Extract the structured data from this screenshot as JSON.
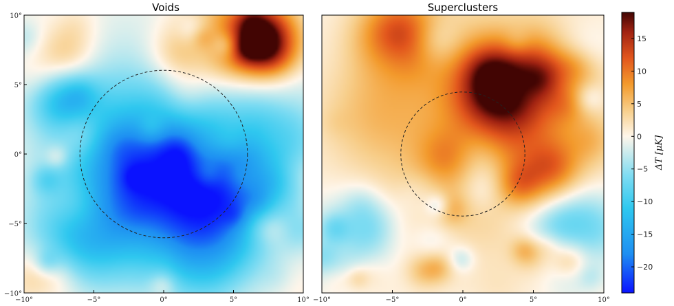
{
  "chart_data": [
    {
      "type": "heatmap",
      "title": "Voids",
      "xlim": [
        -10,
        10
      ],
      "ylim": [
        -10,
        10
      ],
      "x_ticks": [
        "−10°",
        "−5°",
        "0°",
        "5°",
        "10°"
      ],
      "y_ticks": [
        "10°",
        "5°",
        "0°",
        "−5°",
        "−10°"
      ],
      "circle": {
        "center": [
          0,
          0
        ],
        "radius": 6
      },
      "blobs": [
        {
          "x": -1,
          "y": -2,
          "sigma": 3.5,
          "value": -16
        },
        {
          "x": 0,
          "y": 0,
          "sigma": 5.5,
          "value": -8
        },
        {
          "x": 5,
          "y": -3,
          "sigma": 2.5,
          "value": -10
        },
        {
          "x": -6,
          "y": -6,
          "sigma": 2.5,
          "value": -9
        },
        {
          "x": 3,
          "y": -7,
          "sigma": 2.5,
          "value": -10
        },
        {
          "x": -7,
          "y": 4,
          "sigma": 2,
          "value": -6
        },
        {
          "x": 8,
          "y": 1,
          "sigma": 2.5,
          "value": -7
        },
        {
          "x": 7,
          "y": 8.5,
          "sigma": 1.8,
          "value": 16
        },
        {
          "x": 4,
          "y": 8,
          "sigma": 2.2,
          "value": 10
        },
        {
          "x": 1,
          "y": 7,
          "sigma": 1.5,
          "value": 5
        },
        {
          "x": -7,
          "y": 7,
          "sigma": 1.5,
          "value": 6
        },
        {
          "x": -6,
          "y": 1.5,
          "sigma": 1.2,
          "value": 4
        },
        {
          "x": -8.5,
          "y": -9,
          "sigma": 1.5,
          "value": 7
        },
        {
          "x": 1.5,
          "y": 4,
          "sigma": 1.2,
          "value": 3
        }
      ]
    },
    {
      "type": "heatmap",
      "title": "Superclusters",
      "xlim": [
        -10,
        10
      ],
      "ylim": [
        -10,
        10
      ],
      "x_ticks": [
        "−10°",
        "−5°",
        "0°",
        "5°",
        "10°"
      ],
      "y_ticks": [],
      "circle": {
        "center": [
          0,
          0
        ],
        "radius": 4.4
      },
      "blobs": [
        {
          "x": 2.8,
          "y": 4.8,
          "sigma": 2.2,
          "value": 16
        },
        {
          "x": -4.5,
          "y": 8.5,
          "sigma": 2,
          "value": 12
        },
        {
          "x": 1,
          "y": 2,
          "sigma": 6,
          "value": 6
        },
        {
          "x": 5,
          "y": 0,
          "sigma": 3,
          "value": 4
        },
        {
          "x": -8,
          "y": -6,
          "sigma": 2,
          "value": -6
        },
        {
          "x": 8.5,
          "y": -5,
          "sigma": 2,
          "value": -8
        },
        {
          "x": 1.5,
          "y": -2.5,
          "sigma": 1.2,
          "value": -4
        },
        {
          "x": -3,
          "y": -3,
          "sigma": 1,
          "value": -3
        },
        {
          "x": -6.5,
          "y": 3,
          "sigma": 2.5,
          "value": 3
        }
      ]
    }
  ],
  "colorbar": {
    "label": "ΔT [μK]",
    "range": [
      -24,
      19
    ],
    "ticks": [
      15,
      10,
      5,
      0,
      -5,
      -10,
      -15,
      -20
    ],
    "tick_labels": [
      "15",
      "10",
      "5",
      "0",
      "−5",
      "−10",
      "−15",
      "−20"
    ],
    "colors": [
      "#0a12ff",
      "#1e8ff2",
      "#2fc8ef",
      "#7fdcf2",
      "#fff6ea",
      "#f7ce8a",
      "#f39a2c",
      "#e2561d",
      "#a12312",
      "#420503"
    ]
  }
}
